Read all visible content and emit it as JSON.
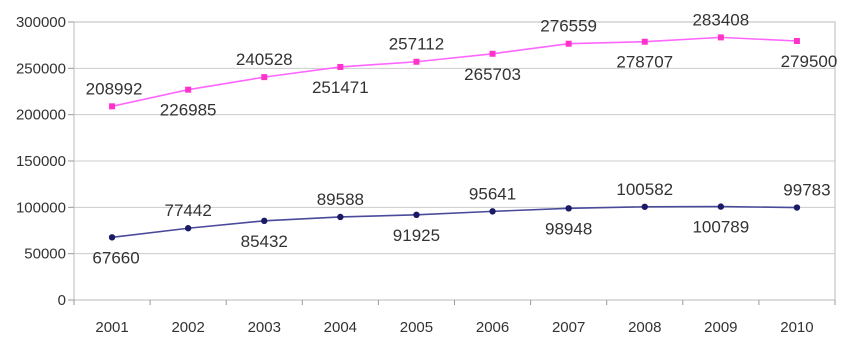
{
  "chart_data": {
    "type": "line",
    "x": [
      "2001",
      "2002",
      "2003",
      "2004",
      "2005",
      "2006",
      "2007",
      "2008",
      "2009",
      "2010"
    ],
    "ylim": [
      0,
      300000
    ],
    "yticks": [
      "0",
      "50000",
      "100000",
      "150000",
      "200000",
      "250000",
      "300000"
    ],
    "grid": true,
    "legend": "none",
    "series": [
      {
        "values": [
          208992,
          226985,
          240528,
          251471,
          257112,
          265703,
          276559,
          278707,
          283408,
          279500
        ],
        "labels": [
          "208992",
          "226985",
          "240528",
          "251471",
          "257112",
          "265703",
          "276559",
          "278707",
          "283408",
          "279500"
        ],
        "color": "#ff66ff",
        "marker_color": "#ff33cc"
      },
      {
        "values": [
          67660,
          77442,
          85432,
          89588,
          91925,
          95641,
          98948,
          100582,
          100789,
          99783
        ],
        "labels": [
          "67660",
          "77442",
          "85432",
          "89588",
          "91925",
          "95641",
          "98948",
          "100582",
          "100789",
          "99783"
        ],
        "color": "#4a4a9a",
        "marker_color": "#1a1a66"
      }
    ]
  }
}
